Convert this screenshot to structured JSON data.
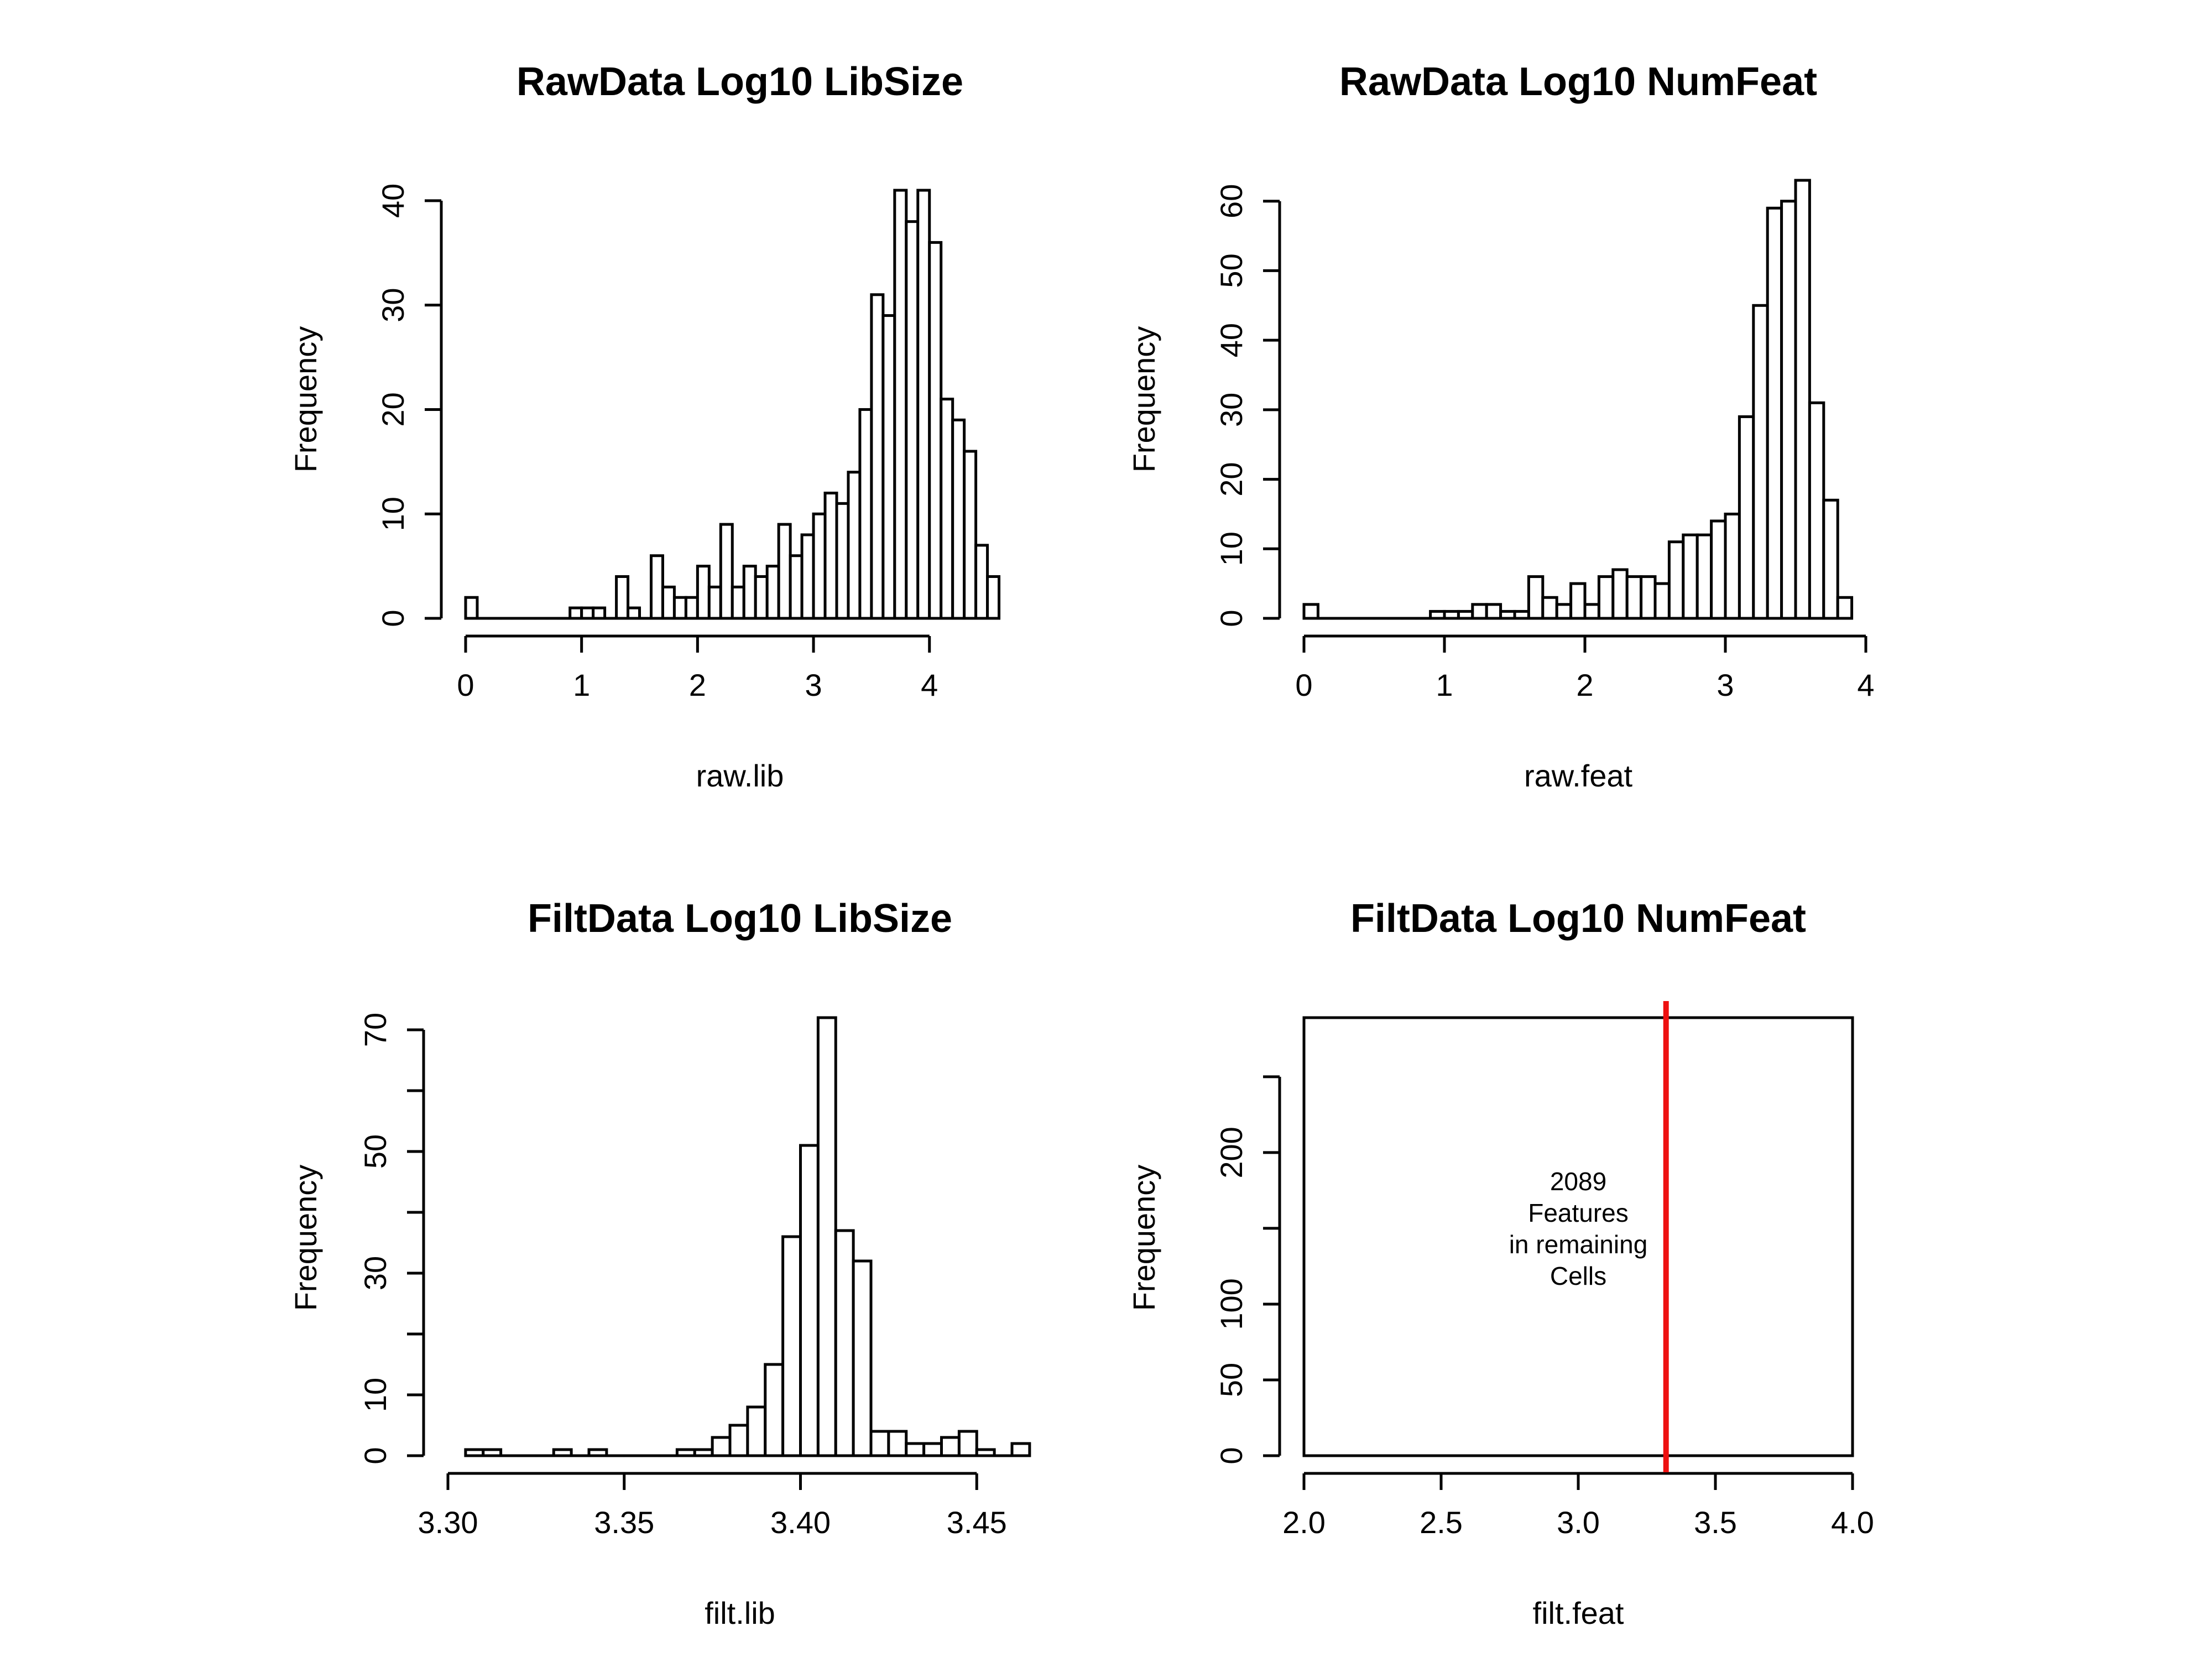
{
  "chart_data": [
    {
      "type": "bar",
      "title": "RawData Log10 LibSize",
      "xlabel": "raw.lib",
      "ylabel": "Frequency",
      "xlim": [
        0,
        4.75
      ],
      "ylim": [
        0,
        41
      ],
      "x_ticks": [
        0,
        1,
        2,
        3,
        4
      ],
      "x_tick_labels": [
        "0",
        "1",
        "2",
        "3",
        "4"
      ],
      "y_ticks": [
        0,
        10,
        20,
        30,
        40
      ],
      "y_tick_labels": [
        "0",
        "10",
        "20",
        "30",
        "40"
      ],
      "bin_start": 0,
      "bin_width": 0.1,
      "values": [
        2,
        0,
        0,
        0,
        0,
        0,
        0,
        0,
        0,
        1,
        1,
        1,
        0,
        4,
        1,
        0,
        6,
        3,
        2,
        2,
        5,
        3,
        9,
        3,
        5,
        4,
        5,
        9,
        6,
        8,
        10,
        12,
        11,
        14,
        20,
        31,
        29,
        41,
        38,
        41,
        36,
        21,
        19,
        16,
        7,
        4
      ],
      "grid": false
    },
    {
      "type": "bar",
      "title": "RawData Log10 NumFeat",
      "xlabel": "raw.feat",
      "ylabel": "Frequency",
      "xlim": [
        0,
        4
      ],
      "ylim": [
        0,
        63
      ],
      "x_ticks": [
        0,
        1,
        2,
        3,
        4
      ],
      "x_tick_labels": [
        "0",
        "1",
        "2",
        "3",
        "4"
      ],
      "y_ticks": [
        0,
        10,
        20,
        30,
        40,
        50,
        60
      ],
      "y_tick_labels": [
        "0",
        "10",
        "20",
        "30",
        "40",
        "50",
        "60"
      ],
      "bin_start": 0,
      "bin_width": 0.1,
      "values": [
        2,
        0,
        0,
        0,
        0,
        0,
        0,
        0,
        0,
        1,
        1,
        1,
        2,
        2,
        1,
        1,
        6,
        3,
        2,
        5,
        2,
        6,
        7,
        6,
        6,
        5,
        11,
        12,
        12,
        14,
        15,
        29,
        45,
        59,
        60,
        63,
        31,
        17,
        3
      ],
      "grid": false
    },
    {
      "type": "bar",
      "title": "FiltData Log10 LibSize",
      "xlabel": "filt.lib",
      "ylabel": "Frequency",
      "xlim": [
        3.3,
        3.46
      ],
      "ylim": [
        0,
        72
      ],
      "x_ticks": [
        3.3,
        3.35,
        3.4,
        3.45
      ],
      "x_tick_labels": [
        "3.30",
        "3.35",
        "3.40",
        "3.45"
      ],
      "y_ticks": [
        0,
        10,
        20,
        30,
        40,
        50,
        60,
        70
      ],
      "y_tick_labels": [
        "0",
        "10",
        "30",
        "50",
        "70"
      ],
      "y_labeled_ticks": [
        0,
        10,
        30,
        50,
        70
      ],
      "bin_start": 3.305,
      "bin_width": 0.005,
      "values": [
        1,
        1,
        0,
        0,
        0,
        1,
        0,
        1,
        0,
        0,
        0,
        0,
        1,
        1,
        3,
        5,
        8,
        15,
        36,
        51,
        72,
        37,
        32,
        4,
        4,
        2,
        2,
        3,
        4,
        1,
        0,
        2
      ],
      "grid": false
    },
    {
      "type": "bar",
      "title": "FiltData Log10 NumFeat",
      "xlabel": "filt.feat",
      "ylabel": "Frequency",
      "xlim": [
        2,
        4
      ],
      "ylim": [
        0,
        289
      ],
      "x_ticks": [
        2,
        2.5,
        3,
        3.5,
        4
      ],
      "x_tick_labels": [
        "2.0",
        "2.5",
        "3.0",
        "3.5",
        "4.0"
      ],
      "y_ticks": [
        0,
        50,
        100,
        150,
        200,
        250
      ],
      "y_tick_labels": [
        "0",
        "50",
        "100",
        "200"
      ],
      "y_labeled_ticks": [
        0,
        50,
        100,
        200
      ],
      "bin_start": 2,
      "bin_width": 2,
      "values": [
        289
      ],
      "vline": {
        "x": 3.32,
        "color": "#ee1111"
      },
      "annotation": [
        "2089",
        "Features",
        "in remaining",
        "Cells"
      ],
      "grid": false
    }
  ]
}
